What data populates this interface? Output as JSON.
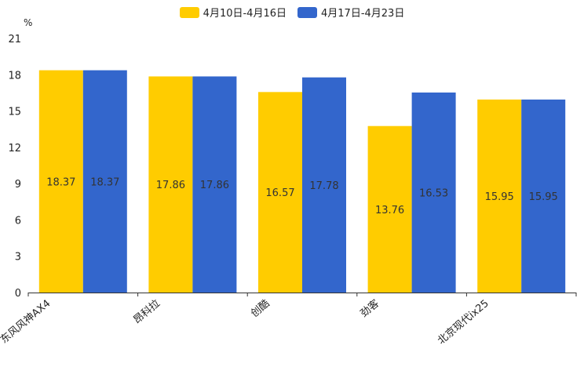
{
  "chart_data": {
    "type": "bar",
    "categories": [
      "东风风神AX4",
      "昂科拉",
      "创酷",
      "劲客",
      "北京现代ix25"
    ],
    "series": [
      {
        "name": "4月10日-4月16日",
        "color": "#FFCC00",
        "values": [
          18.37,
          17.86,
          16.57,
          13.76,
          15.95
        ]
      },
      {
        "name": "4月17日-4月23日",
        "color": "#3366CC",
        "values": [
          18.37,
          17.86,
          17.78,
          16.53,
          15.95
        ]
      }
    ],
    "ylabel": "%",
    "ylim": [
      0,
      21
    ],
    "yticks": [
      0,
      3,
      6,
      9,
      12,
      15,
      18,
      21
    ],
    "legend_position": "top-center"
  }
}
